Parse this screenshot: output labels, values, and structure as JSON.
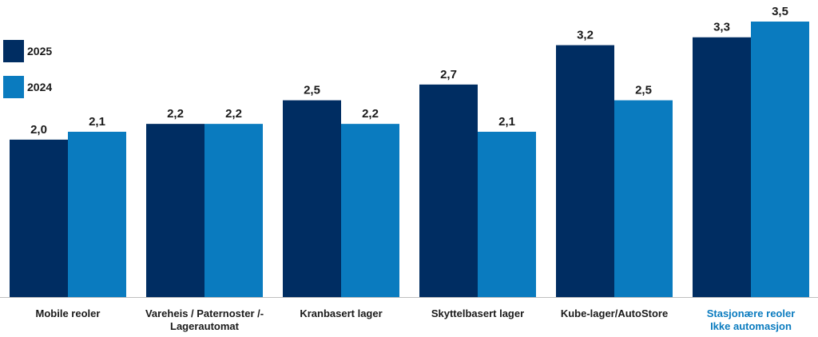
{
  "chart_data": {
    "type": "bar",
    "categories": [
      [
        "Mobile reoler"
      ],
      [
        "Vareheis / Paternoster /-",
        "Lagerautomat"
      ],
      [
        "Kranbasert lager"
      ],
      [
        "Skyttelbasert lager"
      ],
      [
        "Kube-lager/AutoStore"
      ],
      [
        "Stasjonære reoler",
        "Ikke automasjon"
      ]
    ],
    "highlight_category_index": 5,
    "series": [
      {
        "name": "2025",
        "color": "#002d62",
        "values": [
          2.0,
          2.2,
          2.5,
          2.7,
          3.2,
          3.3
        ],
        "labels": [
          "2,0",
          "2,2",
          "2,5",
          "2,7",
          "3,2",
          "3,3"
        ]
      },
      {
        "name": "2024",
        "color": "#0a7bbf",
        "values": [
          2.1,
          2.2,
          2.2,
          2.1,
          2.5,
          3.5
        ],
        "labels": [
          "2,1",
          "2,2",
          "2,2",
          "2,1",
          "2,5",
          "3,5"
        ]
      }
    ],
    "ylim": [
      0,
      3.5
    ],
    "legend_position": "top-left",
    "grid": false,
    "title": "",
    "xlabel": "",
    "ylabel": ""
  }
}
